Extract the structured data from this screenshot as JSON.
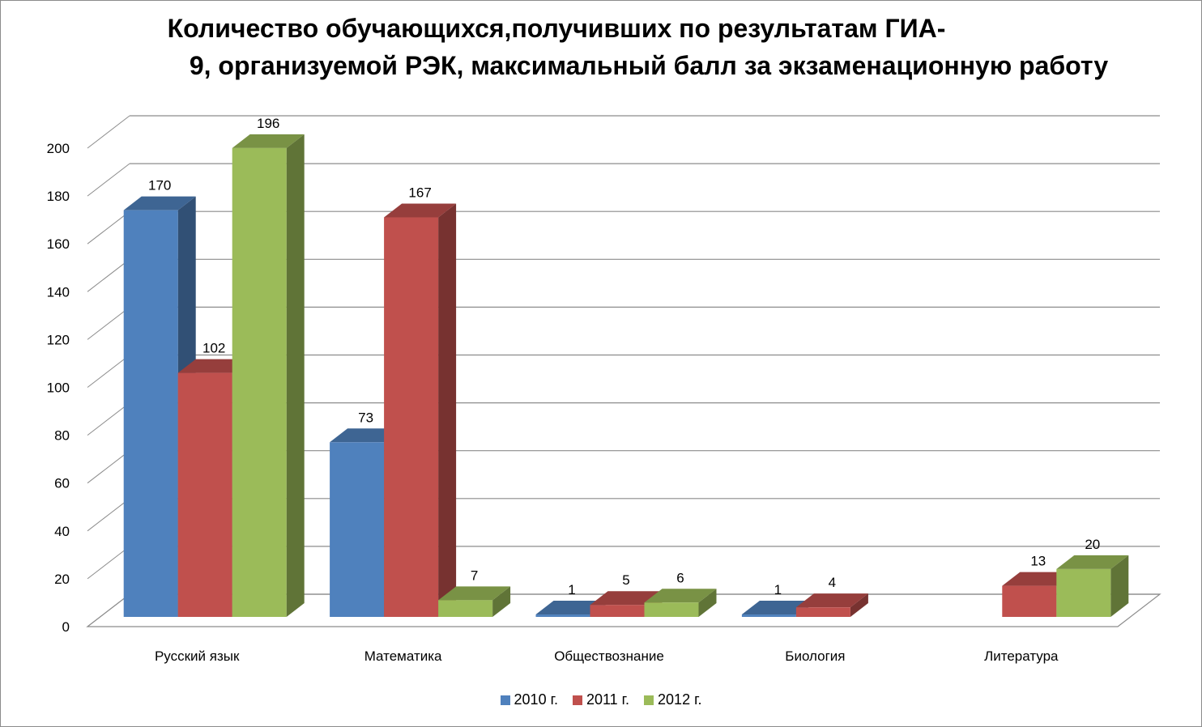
{
  "chart_data": {
    "type": "bar",
    "title_line1": "Количество обучающихся,получивших по результатам  ГИА-",
    "title_line2": "9, организуемой РЭК, максимальный балл за экзаменационную работу",
    "categories": [
      "Русский язык",
      "Математика",
      "Обществознание",
      "Биология",
      "Литература"
    ],
    "series": [
      {
        "name": "2010 г.",
        "color": "#4F81BD",
        "values": [
          170,
          73,
          1,
          1,
          null
        ]
      },
      {
        "name": "2011 г.",
        "color": "#C0504D",
        "values": [
          102,
          167,
          5,
          4,
          13
        ]
      },
      {
        "name": "2012 г.",
        "color": "#9BBB59",
        "values": [
          196,
          7,
          6,
          null,
          20
        ]
      }
    ],
    "yticks": [
      0,
      20,
      40,
      60,
      80,
      100,
      120,
      140,
      160,
      180,
      200
    ],
    "ylim": [
      0,
      200
    ],
    "grid": true,
    "legend_position": "bottom",
    "three_d": true
  }
}
